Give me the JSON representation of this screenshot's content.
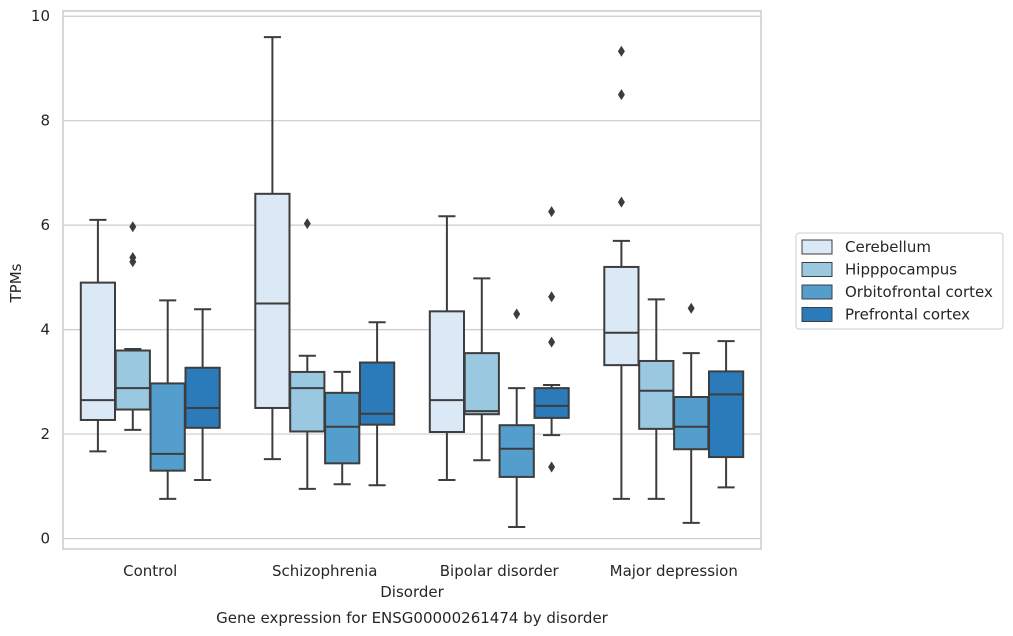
{
  "chart_data": {
    "type": "box",
    "title": "Gene expression for ENSG00000261474 by disorder",
    "xlabel": "Disorder",
    "ylabel": "TPMs",
    "ylim": [
      -0.2,
      10.1
    ],
    "yticks": [
      0,
      2,
      4,
      6,
      8,
      10
    ],
    "grid": true,
    "legend_position": "right",
    "categories": [
      "Control",
      "Schizophrenia",
      "Bipolar disorder",
      "Major depression"
    ],
    "series": [
      {
        "name": "Cerebellum",
        "color": "#dbe8f5",
        "boxes": [
          {
            "whislo": 1.67,
            "q1": 2.27,
            "med": 2.65,
            "q3": 4.9,
            "whishi": 6.1,
            "fliers": []
          },
          {
            "whislo": 1.52,
            "q1": 2.5,
            "med": 4.5,
            "q3": 6.6,
            "whishi": 9.6,
            "fliers": []
          },
          {
            "whislo": 1.12,
            "q1": 2.04,
            "med": 2.65,
            "q3": 4.35,
            "whishi": 6.17,
            "fliers": []
          },
          {
            "whislo": 0.76,
            "q1": 3.32,
            "med": 3.94,
            "q3": 5.2,
            "whishi": 5.7,
            "fliers": [
              6.44,
              8.5,
              9.33
            ]
          }
        ]
      },
      {
        "name": "Hipppocampus",
        "color": "#9ac8e0",
        "boxes": [
          {
            "whislo": 2.08,
            "q1": 2.47,
            "med": 2.88,
            "q3": 3.6,
            "whishi": 3.63,
            "fliers": [
              5.3,
              5.38,
              5.97
            ]
          },
          {
            "whislo": 0.95,
            "q1": 2.05,
            "med": 2.88,
            "q3": 3.19,
            "whishi": 3.5,
            "fliers": [
              6.03
            ]
          },
          {
            "whislo": 1.5,
            "q1": 2.38,
            "med": 2.44,
            "q3": 3.55,
            "whishi": 4.98,
            "fliers": []
          },
          {
            "whislo": 0.76,
            "q1": 2.1,
            "med": 2.83,
            "q3": 3.4,
            "whishi": 4.58,
            "fliers": []
          }
        ]
      },
      {
        "name": "Orbitofrontal cortex",
        "color": "#539ecd",
        "boxes": [
          {
            "whislo": 0.76,
            "q1": 1.3,
            "med": 1.62,
            "q3": 2.97,
            "whishi": 4.56,
            "fliers": []
          },
          {
            "whislo": 1.04,
            "q1": 1.44,
            "med": 2.14,
            "q3": 2.79,
            "whishi": 3.19,
            "fliers": []
          },
          {
            "whislo": 0.22,
            "q1": 1.18,
            "med": 1.72,
            "q3": 2.17,
            "whishi": 2.88,
            "fliers": [
              4.3
            ]
          },
          {
            "whislo": 0.3,
            "q1": 1.71,
            "med": 2.14,
            "q3": 2.71,
            "whishi": 3.55,
            "fliers": [
              4.41
            ]
          }
        ]
      },
      {
        "name": "Prefrontal cortex",
        "color": "#2b7bba",
        "boxes": [
          {
            "whislo": 1.12,
            "q1": 2.12,
            "med": 2.5,
            "q3": 3.27,
            "whishi": 4.39,
            "fliers": []
          },
          {
            "whislo": 1.02,
            "q1": 2.18,
            "med": 2.39,
            "q3": 3.37,
            "whishi": 4.14,
            "fliers": []
          },
          {
            "whislo": 1.98,
            "q1": 2.31,
            "med": 2.54,
            "q3": 2.88,
            "whishi": 2.94,
            "fliers": [
              1.37,
              3.76,
              4.63,
              6.26
            ]
          },
          {
            "whislo": 0.98,
            "q1": 1.56,
            "med": 2.76,
            "q3": 3.2,
            "whishi": 3.78,
            "fliers": []
          }
        ]
      }
    ]
  }
}
